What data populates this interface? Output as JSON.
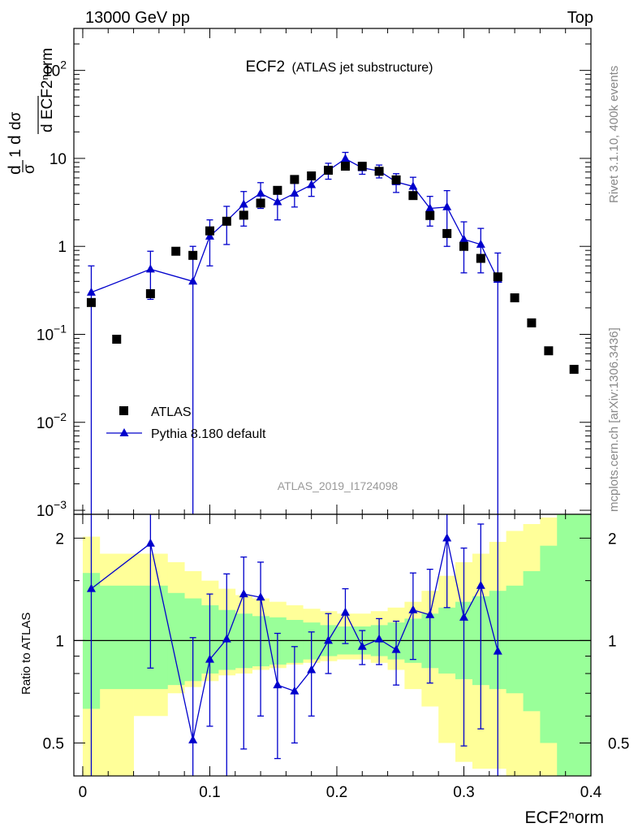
{
  "header": {
    "energy_label": "13000 GeV pp",
    "process_label": "Top"
  },
  "side_labels": {
    "rivet": "Rivet 3.1.10,  400k events",
    "mcplots": "mcplots.cern.ch [arXiv:1306.3436]"
  },
  "plot_title": {
    "main": "ECF2",
    "sub": "(ATLAS jet substructure)"
  },
  "analysis_id": "ATLAS_2019_I1724098",
  "legend": {
    "data_label": "ATLAS",
    "mc_label": "Pythia 8.180 default"
  },
  "axis": {
    "xlabel": "ECF2ⁿorm",
    "ylabel_ratio": "Ratio to ATLAS",
    "ylabel_main": "(1/σ) dσ/d ECF2ⁿorm"
  },
  "colors": {
    "mc": "#0000cc",
    "data": "#000000",
    "band_inner": "#99ff99",
    "band_outer": "#ffff99"
  },
  "chart_data": [
    {
      "type": "scatter",
      "panel": "main",
      "log_y": true,
      "xlim": [
        -0.007,
        0.4
      ],
      "ylim": [
        0.0009,
        300
      ],
      "x_ticks": [
        0,
        0.1,
        0.2,
        0.3,
        0.4
      ],
      "x_tick_labels": [
        "0",
        "0.1",
        "0.2",
        "0.3",
        "0.4"
      ],
      "y_ticks": [
        0.001,
        0.01,
        0.1,
        1,
        10,
        100
      ],
      "y_tick_labels": [
        {
          "base": "10",
          "exp": "−3"
        },
        {
          "base": "10",
          "exp": "−2"
        },
        {
          "base": "10",
          "exp": "−1"
        },
        {
          "base": "1",
          "exp": ""
        },
        {
          "base": "10",
          "exp": ""
        },
        {
          "base": "10",
          "exp": "2"
        }
      ],
      "series": [
        {
          "name": "ATLAS",
          "marker": "square",
          "x": [
            0.0067,
            0.0267,
            0.0533,
            0.0733,
            0.0867,
            0.1,
            0.1133,
            0.1267,
            0.14,
            0.1533,
            0.1667,
            0.18,
            0.1933,
            0.2067,
            0.22,
            0.2333,
            0.2467,
            0.26,
            0.2733,
            0.2867,
            0.3,
            0.3133,
            0.3267,
            0.34,
            0.3533,
            0.3667,
            0.3867
          ],
          "y": [
            0.23,
            0.088,
            0.29,
            0.88,
            0.79,
            1.5,
            1.93,
            2.26,
            3.1,
            4.33,
            5.76,
            6.32,
            7.33,
            8.15,
            8.13,
            7.13,
            5.7,
            3.78,
            2.24,
            1.4,
            1.0,
            0.73,
            0.45,
            0.26,
            0.135,
            0.065,
            0.04
          ]
        },
        {
          "name": "Pythia 8.180 default",
          "marker": "triangle",
          "x": [
            0.0067,
            0.0533,
            0.0867,
            0.1,
            0.1133,
            0.1267,
            0.14,
            0.1533,
            0.1667,
            0.18,
            0.1933,
            0.2067,
            0.22,
            0.2333,
            0.2467,
            0.26,
            0.2733,
            0.2867,
            0.3,
            0.3133,
            0.3267
          ],
          "y": [
            0.3,
            0.55,
            0.4,
            1.3,
            1.95,
            3.0,
            4.0,
            3.2,
            4.0,
            5.0,
            7.3,
            9.9,
            7.8,
            7.2,
            5.4,
            4.8,
            2.7,
            2.8,
            1.2,
            1.05,
            0.42
          ],
          "y_err_low": [
            0.3,
            0.3,
            0.4,
            0.7,
            0.9,
            1.3,
            1.3,
            1.2,
            1.2,
            1.3,
            1.5,
            1.8,
            1.2,
            1.2,
            1.3,
            1.3,
            1.0,
            1.8,
            0.7,
            0.55,
            0.42
          ],
          "y_err_high": [
            0.3,
            0.33,
            0.6,
            0.7,
            0.9,
            1.2,
            1.3,
            1.2,
            1.2,
            1.2,
            1.5,
            1.8,
            1.2,
            1.2,
            1.3,
            1.3,
            1.0,
            1.5,
            0.7,
            0.55,
            0.42
          ]
        }
      ]
    },
    {
      "type": "scatter",
      "panel": "ratio",
      "log_y": true,
      "xlim": [
        -0.007,
        0.4
      ],
      "ylim": [
        0.4,
        2.35
      ],
      "y_ticks": [
        0.5,
        1,
        2
      ],
      "y_tick_labels": [
        "0.5",
        "1",
        "2"
      ],
      "reference_line": 1,
      "bands": {
        "edges": [
          0,
          0.0133,
          0.04,
          0.0667,
          0.08,
          0.0933,
          0.1067,
          0.12,
          0.1333,
          0.1467,
          0.16,
          0.1733,
          0.1867,
          0.2,
          0.2133,
          0.2267,
          0.24,
          0.2533,
          0.2667,
          0.28,
          0.2933,
          0.3067,
          0.32,
          0.3333,
          0.3467,
          0.36,
          0.3733,
          0.4
        ],
        "inner_low": [
          0.63,
          0.72,
          0.72,
          0.74,
          0.76,
          0.8,
          0.82,
          0.83,
          0.84,
          0.85,
          0.86,
          0.88,
          0.9,
          0.91,
          0.91,
          0.9,
          0.88,
          0.86,
          0.83,
          0.8,
          0.77,
          0.74,
          0.72,
          0.7,
          0.62,
          0.5,
          0.4
        ],
        "inner_high": [
          1.58,
          1.45,
          1.45,
          1.38,
          1.33,
          1.27,
          1.23,
          1.2,
          1.18,
          1.17,
          1.15,
          1.13,
          1.11,
          1.1,
          1.1,
          1.11,
          1.13,
          1.16,
          1.2,
          1.25,
          1.3,
          1.35,
          1.4,
          1.45,
          1.6,
          1.9,
          2.4
        ],
        "outer_low": [
          0.4,
          0.4,
          0.6,
          0.7,
          0.73,
          0.76,
          0.79,
          0.8,
          0.82,
          0.83,
          0.85,
          0.86,
          0.87,
          0.88,
          0.88,
          0.86,
          0.82,
          0.72,
          0.64,
          0.5,
          0.44,
          0.42,
          0.42,
          0.4,
          0.4,
          0.4,
          0.4
        ],
        "outer_high": [
          2.02,
          1.8,
          1.8,
          1.7,
          1.6,
          1.5,
          1.42,
          1.36,
          1.33,
          1.3,
          1.27,
          1.24,
          1.22,
          1.2,
          1.2,
          1.22,
          1.25,
          1.3,
          1.4,
          1.55,
          1.7,
          1.8,
          1.95,
          2.1,
          2.2,
          2.3,
          2.4
        ]
      },
      "series": [
        {
          "name": "Pythia 8.180 default",
          "x": [
            0.0067,
            0.0533,
            0.0867,
            0.1,
            0.1133,
            0.1267,
            0.14,
            0.1533,
            0.1667,
            0.18,
            0.1933,
            0.2067,
            0.22,
            0.2333,
            0.2467,
            0.26,
            0.2733,
            0.2867,
            0.3,
            0.3133,
            0.3267
          ],
          "y": [
            1.42,
            1.93,
            0.51,
            0.88,
            1.01,
            1.37,
            1.34,
            0.74,
            0.71,
            0.82,
            1.0,
            1.21,
            0.96,
            1.01,
            0.94,
            1.23,
            1.19,
            2.0,
            1.17,
            1.45,
            0.93
          ],
          "y_low": [
            0.35,
            0.83,
            0.35,
            0.56,
            0.39,
            0.48,
            0.6,
            0.45,
            0.5,
            0.6,
            0.8,
            0.98,
            0.85,
            0.85,
            0.74,
            0.88,
            0.75,
            1.25,
            0.49,
            0.55,
            0.35
          ],
          "y_high": [
            2.4,
            2.4,
            1.02,
            1.37,
            1.57,
            1.76,
            1.7,
            1.05,
            0.96,
            1.06,
            1.2,
            1.42,
            1.07,
            1.16,
            1.14,
            1.58,
            1.62,
            2.4,
            1.87,
            2.2,
            2.4
          ]
        }
      ]
    }
  ]
}
